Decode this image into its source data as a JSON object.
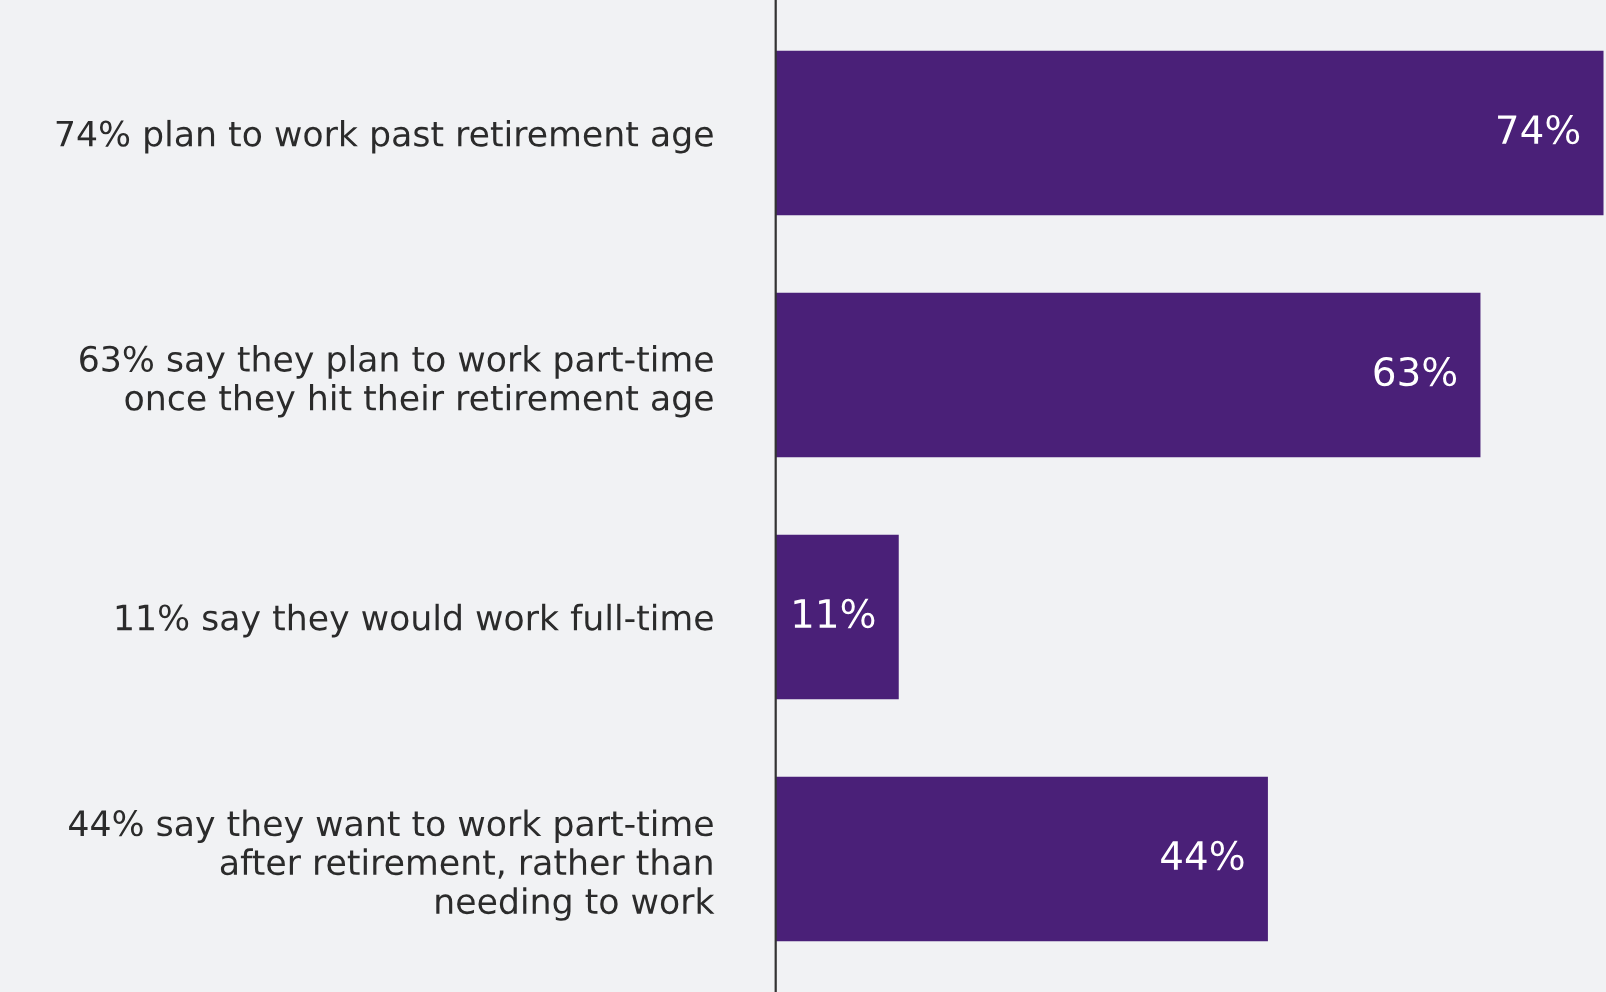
{
  "chart_data": {
    "type": "bar",
    "orientation": "horizontal",
    "categories": [
      "74% plan to work past retirement age",
      "63% say they plan to work part-time\nonce they hit their retirement age",
      "11% say they would work full-time",
      "44% say they want to work part-time\nafter retirement, rather than\nneeding to work"
    ],
    "values": [
      74,
      63,
      11,
      44
    ],
    "value_labels": [
      "74%",
      "63%",
      "11%",
      "44%"
    ],
    "color": "#4a2078",
    "grid": false,
    "legend": false
  }
}
